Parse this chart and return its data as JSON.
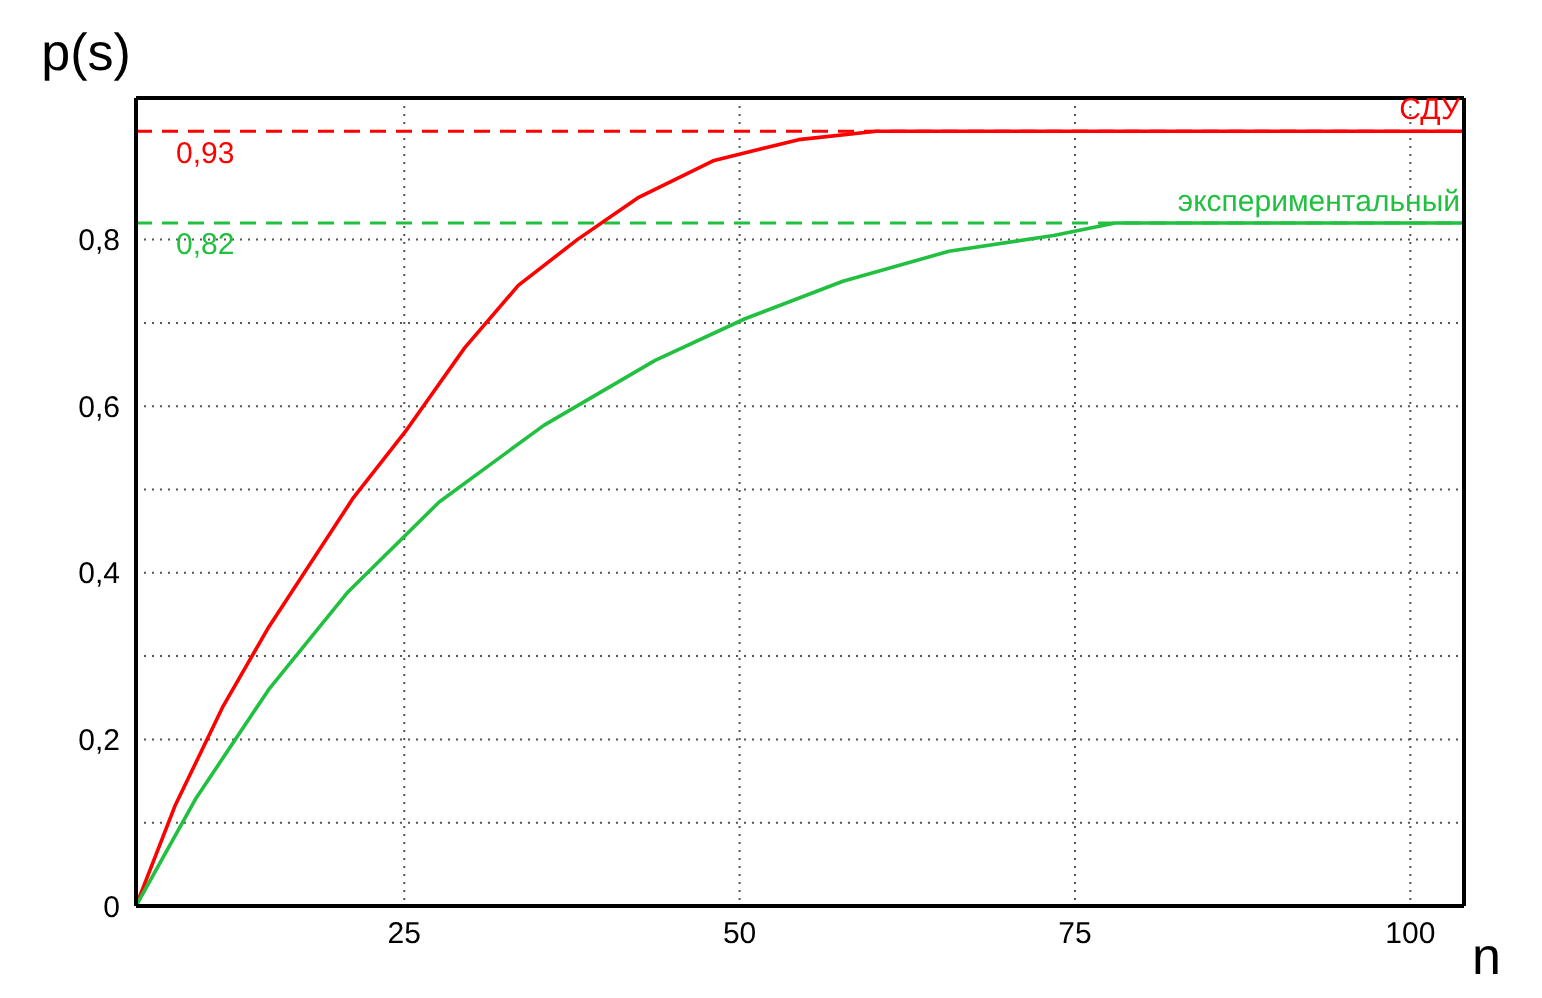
{
  "chart_data": {
    "type": "line",
    "xlabel": "n",
    "ylabel": "p(s)",
    "xlim": [
      5,
      104
    ],
    "xticks": [
      25,
      50,
      75,
      100
    ],
    "ylim": [
      0,
      0.97
    ],
    "yticks": [
      0,
      {
        "value": 0.1,
        "label": null
      },
      {
        "value": 0.2,
        "label": "0,2"
      },
      {
        "value": 0.3,
        "label": null
      },
      {
        "value": 0.4,
        "label": "0,4"
      },
      {
        "value": 0.5,
        "label": null
      },
      {
        "value": 0.6,
        "label": "0,6"
      },
      {
        "value": 0.7,
        "label": null
      },
      {
        "value": 0.8,
        "label": "0,8"
      }
    ],
    "grid": true,
    "legend": false,
    "marker": "none",
    "line_style": "solid",
    "series": [
      {
        "name": "СДУ",
        "color": "#ff0000",
        "x": [
          5,
          7.9,
          11.5,
          14.9,
          21.2,
          25.1,
          29.5,
          33.5,
          37.9,
          42.4,
          48.1,
          54.4,
          60.2,
          104
        ],
        "values": [
          0,
          0.12,
          0.24,
          0.335,
          0.49,
          0.57,
          0.67,
          0.745,
          0.8,
          0.85,
          0.895,
          0.92,
          0.93,
          0.93
        ]
      },
      {
        "name": "экспериментальный",
        "color": "#22c040",
        "x": [
          5,
          9.5,
          14.9,
          20.8,
          27.6,
          35.4,
          43.7,
          50.4,
          57.7,
          65.6,
          73.4,
          78,
          104
        ],
        "values": [
          0,
          0.13,
          0.26,
          0.377,
          0.485,
          0.577,
          0.655,
          0.705,
          0.75,
          0.786,
          0.805,
          0.82,
          0.82
        ]
      }
    ],
    "ref_lines": [
      {
        "axis": "y",
        "value": 0.93,
        "label": "0,93",
        "color": "#ff0000",
        "line_style": "dashed"
      },
      {
        "axis": "y",
        "value": 0.82,
        "label": "0,82",
        "color": "#22c040",
        "line_style": "dashed"
      }
    ]
  }
}
